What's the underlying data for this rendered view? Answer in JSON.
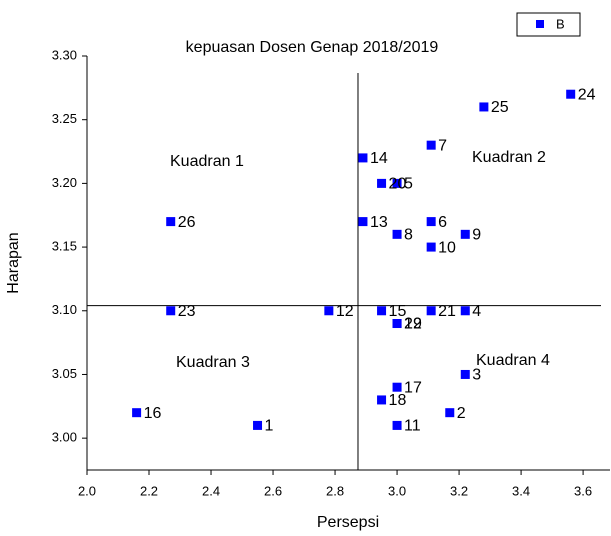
{
  "chart_data": {
    "type": "scatter",
    "title": "kepuasan Dosen Genap 2018/2019",
    "x_label": "Persepsi",
    "y_label": "Harapan",
    "annotations": [
      "Kuadran 1",
      "Kuadran 2",
      "Kuadran 3",
      "Kuadran 4"
    ],
    "reference_lines": {
      "x": 2.874,
      "y": 3.104
    },
    "series": [
      {
        "name": "B",
        "color": "#0000ff",
        "x": [
          2.55,
          3.17,
          3.22,
          3.22,
          3.0,
          3.11,
          3.11,
          3.0,
          3.22,
          3.11,
          3.0,
          2.78,
          2.89,
          2.89,
          2.95,
          2.16,
          3.0,
          2.95,
          3.0,
          2.95,
          3.11,
          3.0,
          2.27,
          3.56,
          3.28,
          2.27
        ],
        "values": [
          3.01,
          3.02,
          3.05,
          3.1,
          3.2,
          3.17,
          3.23,
          3.16,
          3.16,
          3.15,
          3.01,
          3.1,
          3.17,
          3.22,
          3.1,
          3.02,
          3.04,
          3.03,
          3.09,
          3.2,
          3.1,
          3.09,
          3.1,
          3.27,
          3.26,
          3.17
        ],
        "labels": [
          "1",
          "2",
          "3",
          "4",
          "5",
          "6",
          "7",
          "8",
          "9",
          "10",
          "11",
          "12",
          "13",
          "14",
          "15",
          "16",
          "17",
          "18",
          "19",
          "20",
          "21",
          "22",
          "23",
          "24",
          "25",
          "26"
        ]
      }
    ],
    "xlim": [
      2.0,
      3.69
    ],
    "ylim": [
      2.975,
      3.3
    ],
    "xticks": [
      {
        "value": 2.0,
        "label": "2.0"
      },
      2.2,
      2.4,
      2.6,
      2.8,
      {
        "value": 3.0,
        "label": "3.0"
      },
      3.2,
      3.4,
      3.6
    ],
    "yticks": [
      {
        "value": 3.0,
        "label": "3.00"
      },
      3.05,
      {
        "value": 3.1,
        "label": "3.10"
      },
      3.15,
      {
        "value": 3.2,
        "label": "3.20"
      },
      3.25,
      {
        "value": 3.3,
        "label": "3.30"
      }
    ],
    "legend": "top-right"
  }
}
